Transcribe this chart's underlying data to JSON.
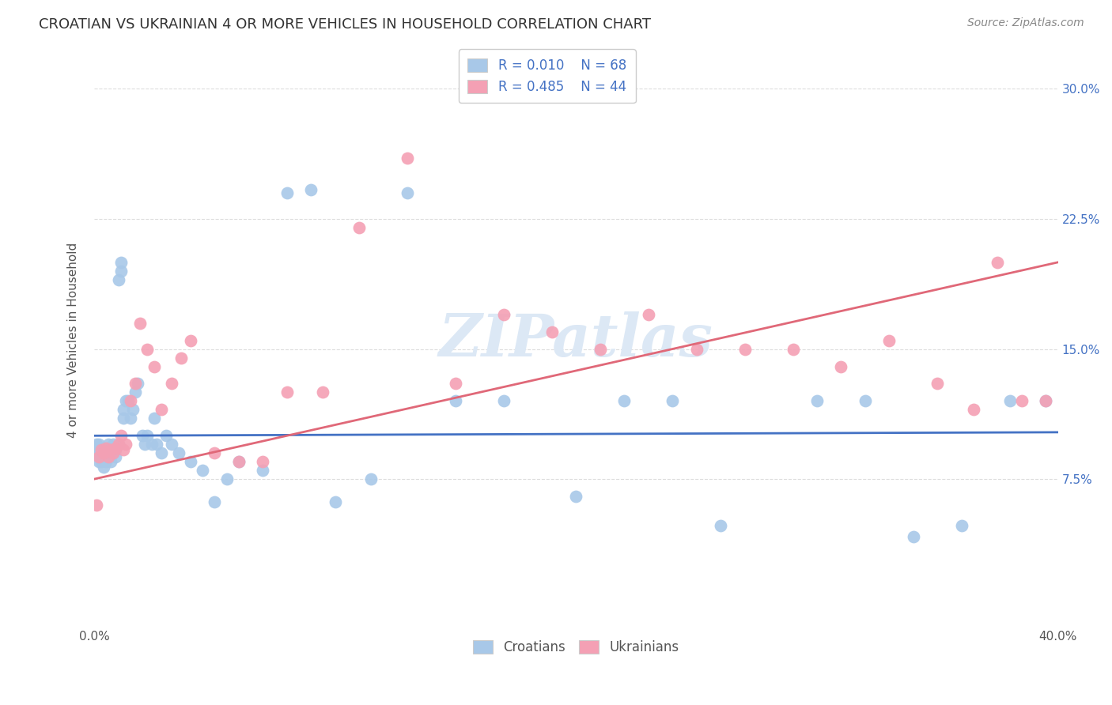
{
  "title": "CROATIAN VS UKRAINIAN 4 OR MORE VEHICLES IN HOUSEHOLD CORRELATION CHART",
  "source": "Source: ZipAtlas.com",
  "ylabel": "4 or more Vehicles in Household",
  "xlim": [
    0.0,
    0.4
  ],
  "ylim": [
    -0.01,
    0.32
  ],
  "croatian_R": "0.010",
  "croatian_N": "68",
  "ukrainian_R": "0.485",
  "ukrainian_N": "44",
  "croatian_color": "#a8c8e8",
  "ukrainian_color": "#f4a0b4",
  "trendline_croatian_color": "#4472c4",
  "trendline_ukrainian_color": "#e06878",
  "watermark_text": "ZIPatlas",
  "watermark_color": "#dce8f5",
  "legend_text_color": "#4472c4",
  "background_color": "#ffffff",
  "grid_color": "#dddddd",
  "title_color": "#333333",
  "right_yaxis_color": "#4472c4",
  "croatians_x": [
    0.001,
    0.001,
    0.002,
    0.002,
    0.002,
    0.003,
    0.003,
    0.003,
    0.004,
    0.004,
    0.004,
    0.005,
    0.005,
    0.005,
    0.006,
    0.006,
    0.006,
    0.007,
    0.007,
    0.008,
    0.008,
    0.009,
    0.009,
    0.01,
    0.01,
    0.011,
    0.011,
    0.012,
    0.012,
    0.013,
    0.014,
    0.015,
    0.016,
    0.017,
    0.018,
    0.02,
    0.021,
    0.022,
    0.024,
    0.025,
    0.026,
    0.028,
    0.03,
    0.032,
    0.035,
    0.04,
    0.045,
    0.05,
    0.055,
    0.06,
    0.07,
    0.08,
    0.09,
    0.1,
    0.115,
    0.13,
    0.15,
    0.17,
    0.2,
    0.22,
    0.24,
    0.26,
    0.3,
    0.32,
    0.34,
    0.36,
    0.38,
    0.395
  ],
  "croatians_y": [
    0.09,
    0.095,
    0.085,
    0.09,
    0.095,
    0.085,
    0.09,
    0.092,
    0.088,
    0.093,
    0.082,
    0.09,
    0.085,
    0.092,
    0.088,
    0.093,
    0.095,
    0.085,
    0.092,
    0.09,
    0.095,
    0.088,
    0.092,
    0.095,
    0.19,
    0.195,
    0.2,
    0.11,
    0.115,
    0.12,
    0.12,
    0.11,
    0.115,
    0.125,
    0.13,
    0.1,
    0.095,
    0.1,
    0.095,
    0.11,
    0.095,
    0.09,
    0.1,
    0.095,
    0.09,
    0.085,
    0.08,
    0.062,
    0.075,
    0.085,
    0.08,
    0.24,
    0.242,
    0.062,
    0.075,
    0.24,
    0.12,
    0.12,
    0.065,
    0.12,
    0.12,
    0.048,
    0.12,
    0.12,
    0.042,
    0.048,
    0.12,
    0.12
  ],
  "ukrainians_x": [
    0.001,
    0.002,
    0.003,
    0.004,
    0.005,
    0.006,
    0.007,
    0.008,
    0.009,
    0.01,
    0.011,
    0.012,
    0.013,
    0.015,
    0.017,
    0.019,
    0.022,
    0.025,
    0.028,
    0.032,
    0.036,
    0.04,
    0.05,
    0.06,
    0.07,
    0.08,
    0.095,
    0.11,
    0.13,
    0.15,
    0.17,
    0.19,
    0.21,
    0.23,
    0.25,
    0.27,
    0.29,
    0.31,
    0.33,
    0.35,
    0.365,
    0.375,
    0.385,
    0.395
  ],
  "ukrainians_y": [
    0.06,
    0.088,
    0.092,
    0.09,
    0.093,
    0.088,
    0.092,
    0.09,
    0.093,
    0.095,
    0.1,
    0.092,
    0.095,
    0.12,
    0.13,
    0.165,
    0.15,
    0.14,
    0.115,
    0.13,
    0.145,
    0.155,
    0.09,
    0.085,
    0.085,
    0.125,
    0.125,
    0.22,
    0.26,
    0.13,
    0.17,
    0.16,
    0.15,
    0.17,
    0.15,
    0.15,
    0.15,
    0.14,
    0.155,
    0.13,
    0.115,
    0.2,
    0.12,
    0.12
  ]
}
